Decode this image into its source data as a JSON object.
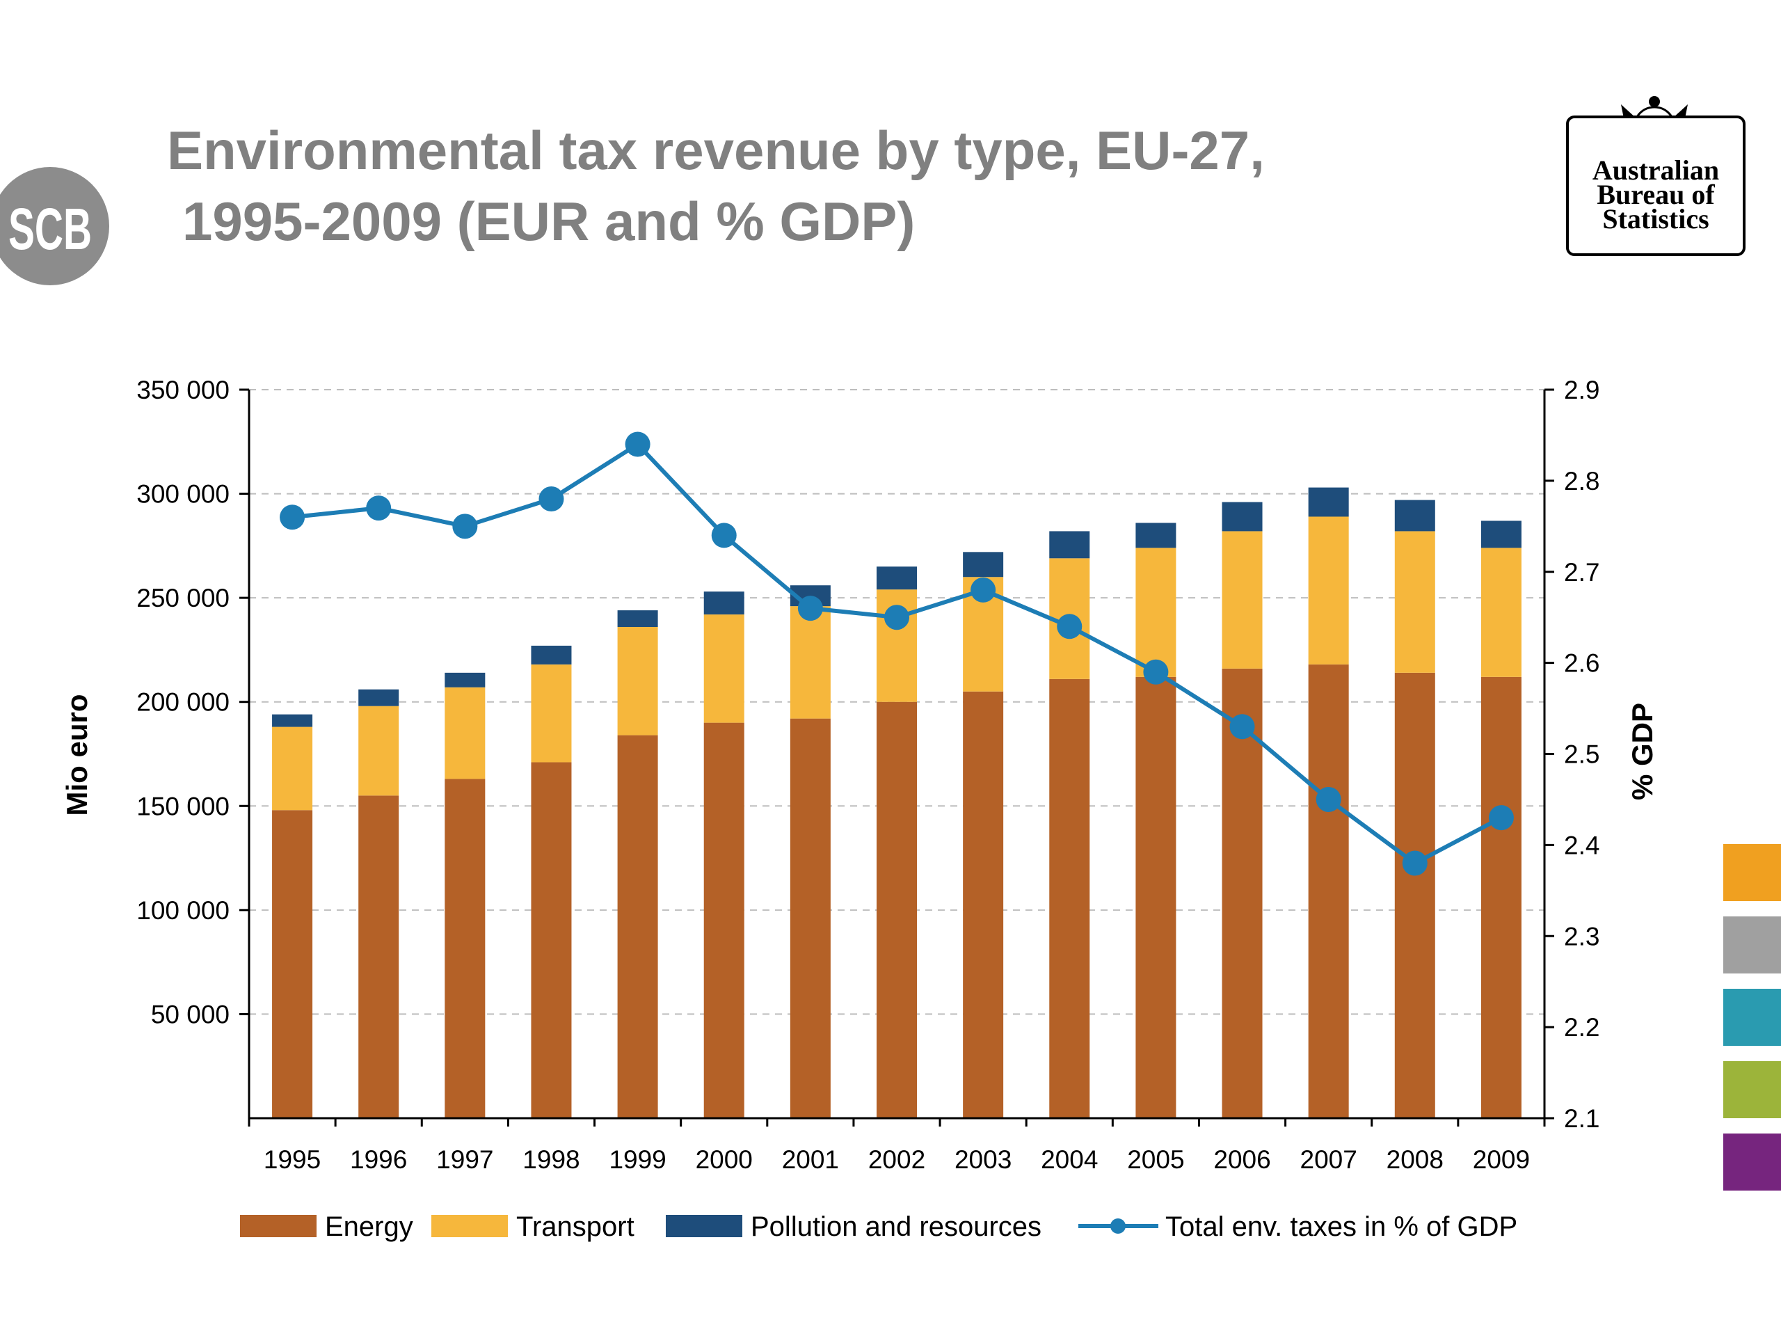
{
  "slide": {
    "title_line1": "Environmental tax revenue by type, EU-27,",
    "title_line2": "1995-2009 (EUR and % GDP)",
    "scb_logo_text": "SCB",
    "abs_logo_lines": [
      "Australian",
      "Bureau of",
      "Statistics"
    ],
    "side_swatch_colors": [
      "#F0A020",
      "#A0A0A0",
      "#2A9BB0",
      "#9CB43A",
      "#76257E"
    ]
  },
  "chart_data": {
    "type": "bar",
    "stacked": true,
    "categories": [
      "1995",
      "1996",
      "1997",
      "1998",
      "1999",
      "2000",
      "2001",
      "2002",
      "2003",
      "2004",
      "2005",
      "2006",
      "2007",
      "2008",
      "2009"
    ],
    "series": [
      {
        "name": "Energy",
        "color": "#B46127",
        "values": [
          148000,
          155000,
          163000,
          171000,
          184000,
          190000,
          192000,
          200000,
          205000,
          211000,
          212000,
          216000,
          218000,
          214000,
          212000
        ]
      },
      {
        "name": "Transport",
        "color": "#F6B73C",
        "values": [
          40000,
          43000,
          44000,
          47000,
          52000,
          52000,
          54000,
          54000,
          55000,
          58000,
          62000,
          66000,
          71000,
          68000,
          62000
        ]
      },
      {
        "name": "Pollution and resources",
        "color": "#1E4D7B",
        "values": [
          6000,
          8000,
          7000,
          9000,
          8000,
          11000,
          10000,
          11000,
          12000,
          13000,
          12000,
          14000,
          14000,
          15000,
          13000
        ]
      }
    ],
    "line_series": {
      "name": "Total env. taxes in % of GDP",
      "color": "#1D7DB5",
      "axis": "right",
      "values": [
        2.76,
        2.77,
        2.75,
        2.78,
        2.84,
        2.74,
        2.66,
        2.65,
        2.68,
        2.64,
        2.59,
        2.53,
        2.45,
        2.38,
        2.43
      ]
    },
    "ylabel": "Mio euro",
    "ylabel_right": "% GDP",
    "ylim": [
      0,
      350000
    ],
    "ylim_right": [
      2.1,
      2.9
    ],
    "y_ticks": [
      "350 000",
      "300 000",
      "250 000",
      "200 000",
      "150 000",
      "100 000",
      "50 000"
    ],
    "y_tick_values": [
      350000,
      300000,
      250000,
      200000,
      150000,
      100000,
      50000
    ],
    "y_right_ticks": [
      "2.9",
      "2.8",
      "2.7",
      "2.6",
      "2.5",
      "2.4",
      "2.3",
      "2.2",
      "2.1"
    ],
    "y_right_tick_values": [
      2.9,
      2.8,
      2.7,
      2.6,
      2.5,
      2.4,
      2.3,
      2.2,
      2.1
    ],
    "grid": true,
    "legend_position": "bottom"
  }
}
